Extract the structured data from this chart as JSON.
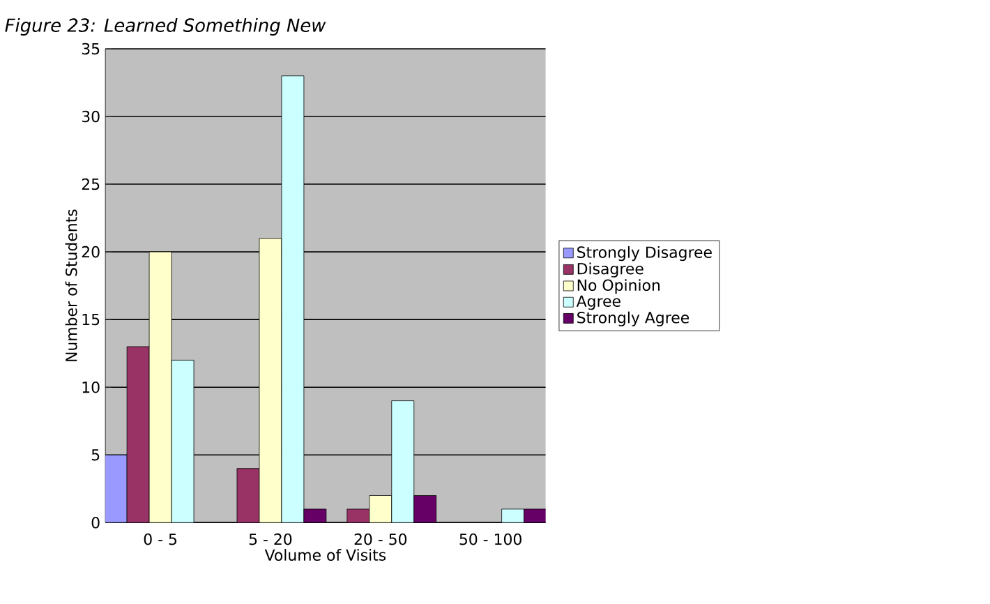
{
  "chart_data": {
    "type": "bar",
    "title": "Figure 23: Learned Something New",
    "xlabel": "Volume of Visits",
    "ylabel": "Number of Students",
    "categories": [
      "0 - 5",
      "5 - 20",
      "20 - 50",
      "50 - 100"
    ],
    "series": [
      {
        "name": "Strongly Disagree",
        "color": "#9999ff",
        "values": [
          5,
          0,
          0,
          0
        ]
      },
      {
        "name": "Disagree",
        "color": "#993366",
        "values": [
          13,
          4,
          1,
          0
        ]
      },
      {
        "name": "No Opinion",
        "color": "#ffffcc",
        "values": [
          20,
          21,
          2,
          0
        ]
      },
      {
        "name": "Agree",
        "color": "#ccffff",
        "values": [
          12,
          33,
          9,
          1
        ]
      },
      {
        "name": "Strongly Agree",
        "color": "#660066",
        "values": [
          0,
          1,
          2,
          1
        ]
      }
    ],
    "ylim": [
      0,
      35
    ],
    "yticks": [
      0,
      5,
      10,
      15,
      20,
      25,
      30,
      35
    ],
    "grid": "y",
    "legend": "right"
  }
}
